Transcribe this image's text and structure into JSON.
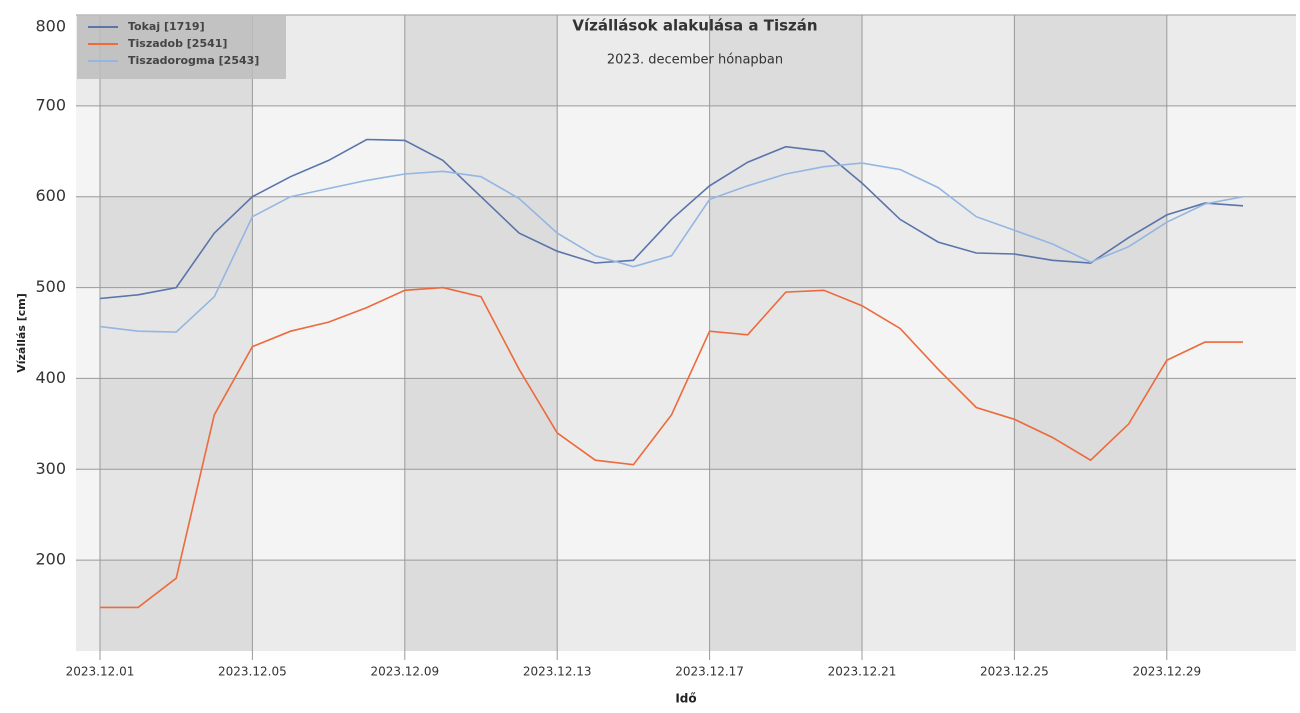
{
  "chart_data": {
    "type": "line",
    "title": "Vízállások alakulása a Tiszán",
    "subtitle": "2023. december hónapban",
    "y_label": "Vízállás [cm]",
    "x_label": "Idő",
    "x": [
      "2023.12.01",
      "2023.12.02",
      "2023.12.03",
      "2023.12.04",
      "2023.12.05",
      "2023.12.06",
      "2023.12.07",
      "2023.12.08",
      "2023.12.09",
      "2023.12.10",
      "2023.12.11",
      "2023.12.12",
      "2023.12.13",
      "2023.12.14",
      "2023.12.15",
      "2023.12.16",
      "2023.12.17",
      "2023.12.18",
      "2023.12.19",
      "2023.12.20",
      "2023.12.21",
      "2023.12.22",
      "2023.12.23",
      "2023.12.24",
      "2023.12.25",
      "2023.12.26",
      "2023.12.27",
      "2023.12.28",
      "2023.12.29",
      "2023.12.30",
      "2023.12.31"
    ],
    "series": [
      {
        "name": "Tokaj [1719]",
        "color": "#5b74aa",
        "values": [
          488,
          492,
          500,
          560,
          600,
          622,
          640,
          663,
          662,
          640,
          600,
          560,
          540,
          527,
          530,
          575,
          612,
          638,
          655,
          650,
          615,
          575,
          550,
          538,
          537,
          530,
          527,
          555,
          580,
          593,
          590
        ]
      },
      {
        "name": "Tiszadob [2541]",
        "color": "#ec6a3c",
        "values": [
          148,
          148,
          180,
          360,
          435,
          452,
          462,
          478,
          497,
          500,
          490,
          410,
          340,
          310,
          305,
          360,
          452,
          448,
          495,
          497,
          480,
          455,
          410,
          368,
          355,
          335,
          310,
          350,
          420,
          440,
          440
        ]
      },
      {
        "name": "Tiszadorogma [2543]",
        "color": "#93b6e2",
        "values": [
          457,
          452,
          451,
          490,
          578,
          600,
          609,
          618,
          625,
          628,
          622,
          598,
          560,
          535,
          523,
          535,
          597,
          612,
          625,
          633,
          637,
          630,
          610,
          578,
          563,
          548,
          528,
          545,
          572,
          592,
          600
        ]
      }
    ],
    "xlim": [
      "2023.12.01",
      "2023.12.31"
    ],
    "xticks": [
      "2023.12.01",
      "2023.12.05",
      "2023.12.09",
      "2023.12.13",
      "2023.12.17",
      "2023.12.21",
      "2023.12.25",
      "2023.12.29"
    ],
    "ylim": [
      100,
      800
    ],
    "yticks": [
      200,
      300,
      400,
      500,
      600,
      700,
      800
    ],
    "grid": true,
    "legend": "upper-left"
  }
}
